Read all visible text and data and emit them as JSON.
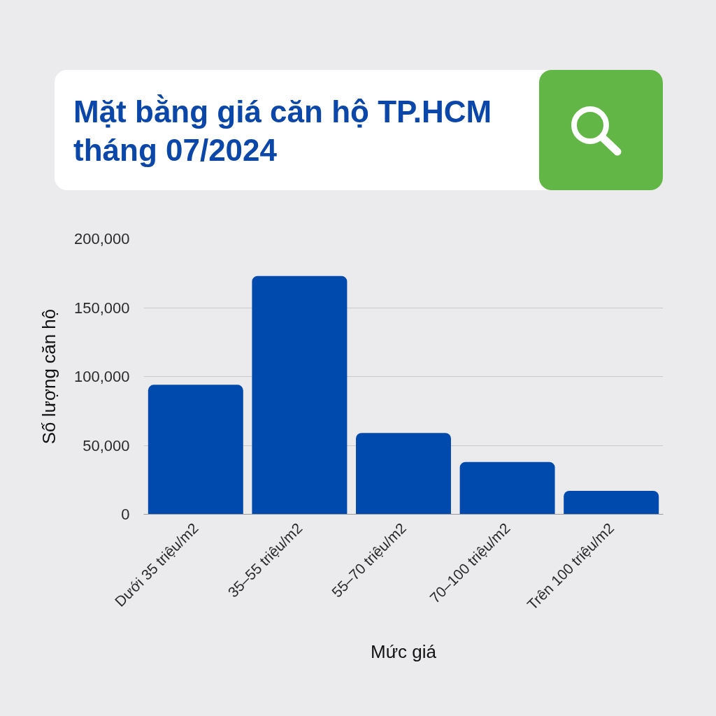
{
  "chart_data": {
    "type": "bar",
    "title": "Mặt bằng giá căn hộ TP.HCM tháng 07/2024",
    "xlabel": "Mức giá",
    "ylabel": "Số lượng căn hộ",
    "categories": [
      "Dưới 35 triệu/m2",
      "35–55 triệu/m2",
      "55–70 triệu/m2",
      "70–100 triệu/m2",
      "Trên 100 triệu/m2"
    ],
    "values": [
      94000,
      173000,
      59000,
      38000,
      17000
    ],
    "color": "#004aad",
    "ylim": [
      0,
      200000
    ],
    "yticks": [
      0,
      {
        "value": 50000,
        "label": "50,000"
      },
      {
        "value": 100000,
        "label": "100,000"
      },
      {
        "value": 150000,
        "label": "150,000"
      },
      {
        "value": 200000,
        "label": "200,000"
      }
    ],
    "grid": "y"
  }
}
